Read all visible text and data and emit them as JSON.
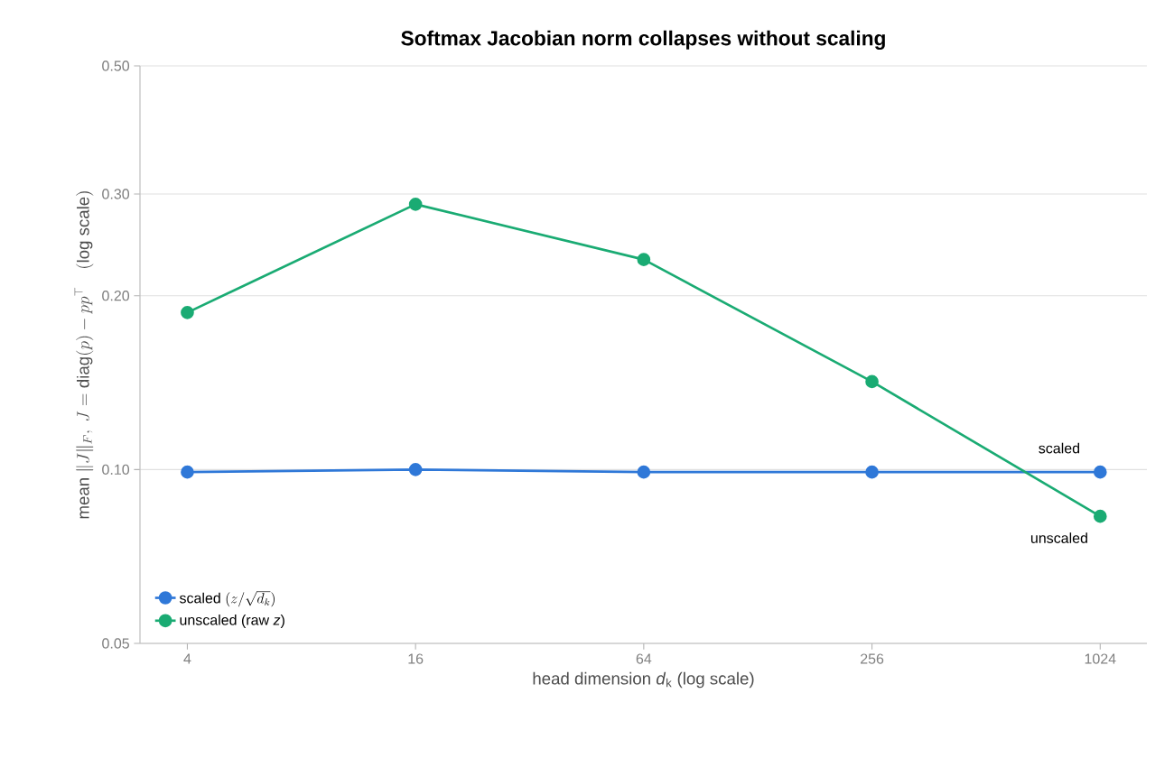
{
  "chart_data": {
    "type": "line",
    "title": "Softmax Jacobian norm collapses without scaling",
    "xlabel": "head dimension *d*$_{k}$ (log scale)",
    "ylabel": "\\mathrm{mean}\\ \\|J\\|_F,\\ J = \\mathrm{diag}(p) - pp^{\\top}\\quad (\\mathrm{log\\ scale})",
    "x": [
      4,
      16,
      64,
      256,
      1024
    ],
    "series": [
      {
        "name": "\\mathrm{scaled}\\ (z/\\sqrt{d_k})",
        "color": "#2f78d8",
        "values": [
          0.099,
          0.1,
          0.099,
          0.099,
          0.099
        ]
      },
      {
        "name": "unscaled (raw *z*)",
        "color": "#1aab73",
        "values": [
          0.187,
          0.288,
          0.231,
          0.142,
          0.083
        ]
      }
    ],
    "annotations": [
      {
        "text": "scaled",
        "x": 1024,
        "y": 0.099
      },
      {
        "text": "unscaled",
        "x": 1024,
        "y": 0.083
      }
    ],
    "log": "xy",
    "xlim": [
      3,
      1360
    ],
    "ylim": [
      0.05,
      0.5
    ],
    "xticks": [
      4,
      16,
      64,
      256,
      1024
    ],
    "yticks": [
      {
        "value": 0.05,
        "label": "0.05"
      },
      {
        "value": 0.1,
        "label": "0.10"
      },
      {
        "value": 0.2,
        "label": "0.20"
      },
      {
        "value": 0.3,
        "label": "0.30"
      },
      {
        "value": 0.5,
        "label": "0.50"
      }
    ],
    "grid": "y",
    "legend": "bottom left",
    "marker": "circle",
    "line_style": "solid"
  }
}
